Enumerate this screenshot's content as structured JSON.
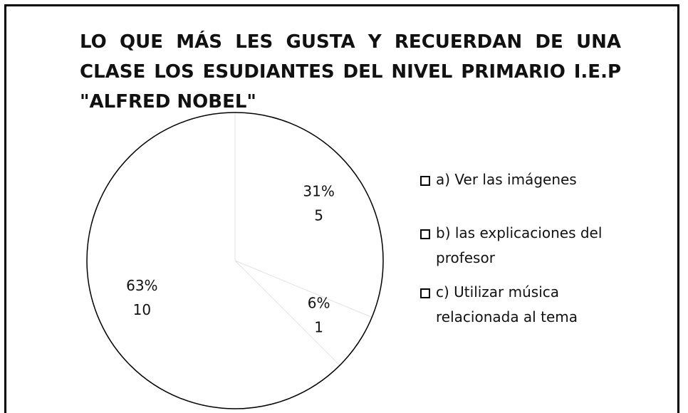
{
  "chart_data": {
    "type": "pie",
    "title": "LO QUE MÁS LES GUSTA Y RECUERDAN DE UNA CLASE LOS ESUDIANTES DEL NIVEL PRIMARIO I.E.P \"ALFRED NOBEL\"",
    "categories": [
      "a)  Ver las imágenes",
      "b)  las explicaciones del profesor",
      "c)  Utilizar música relacionada al tema"
    ],
    "values": [
      5,
      1,
      10
    ],
    "percent_labels": [
      "31%",
      "6%",
      "63%"
    ],
    "colors": [
      "#ffffff",
      "#ffffff",
      "#ffffff"
    ],
    "legend": "right"
  }
}
